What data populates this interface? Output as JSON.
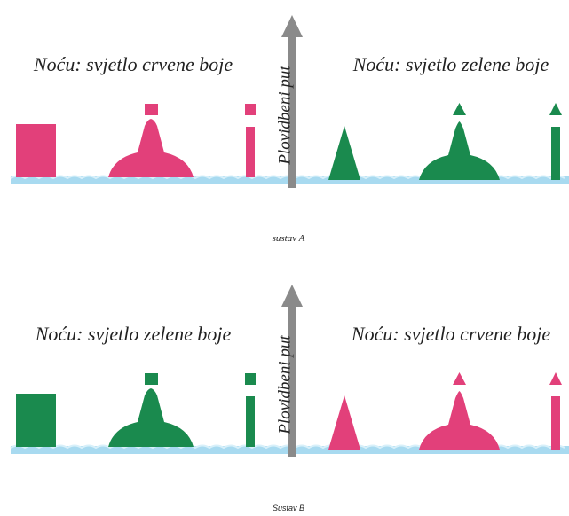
{
  "panels": [
    {
      "left_label": "Noću: svjetlo crvene boje",
      "right_label": "Noću: svjetlo zelene boje",
      "arrow_label": "Plovidbeni put",
      "caption": "sustav A"
    },
    {
      "left_label": "Noću: svjetlo zelene boje",
      "right_label": "Noću: svjetlo crvene boje",
      "arrow_label": "Plovidbeni put",
      "caption": "Sustav B"
    }
  ]
}
